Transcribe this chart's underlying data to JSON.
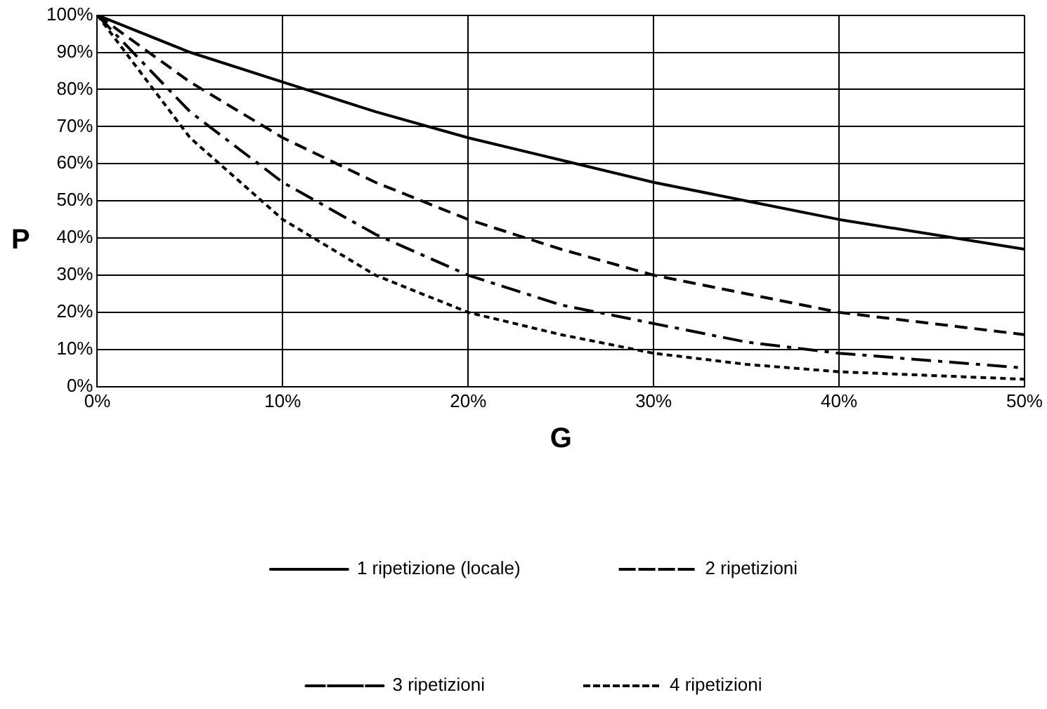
{
  "chart_data": {
    "type": "line",
    "xlabel": "G",
    "ylabel": "P",
    "x": [
      0,
      5,
      10,
      15,
      20,
      25,
      30,
      35,
      40,
      45,
      50
    ],
    "series": [
      {
        "name": "1 ripetizione (locale)",
        "color": "#000000",
        "line_style": "solid",
        "values": [
          100,
          90,
          82,
          74,
          67,
          61,
          55,
          50,
          45,
          41,
          37
        ]
      },
      {
        "name": "2 ripetizioni",
        "color": "#000000",
        "line_style": "dashed",
        "values": [
          100,
          82,
          67,
          55,
          45,
          37,
          30,
          25,
          20,
          17,
          14
        ]
      },
      {
        "name": "3 ripetizioni",
        "color": "#000000",
        "line_style": "dashdot",
        "values": [
          100,
          74,
          55,
          41,
          30,
          22,
          17,
          12,
          9,
          7,
          5
        ]
      },
      {
        "name": "4 ripetizioni",
        "color": "#000000",
        "line_style": "dotted",
        "values": [
          100,
          67,
          45,
          30,
          20,
          14,
          9,
          6,
          4,
          3,
          2
        ]
      }
    ],
    "xlim": [
      0,
      50
    ],
    "xticks": [
      {
        "value": 0,
        "label": "0%"
      },
      {
        "value": 10,
        "label": "10%"
      },
      {
        "value": 20,
        "label": "20%"
      },
      {
        "value": 30,
        "label": "30%"
      },
      {
        "value": 40,
        "label": "40%"
      },
      {
        "value": 50,
        "label": "50%"
      }
    ],
    "ylim": [
      0,
      100
    ],
    "yticks": [
      {
        "value": 0,
        "label": "0%"
      },
      {
        "value": 10,
        "label": "10%"
      },
      {
        "value": 20,
        "label": "20%"
      },
      {
        "value": 30,
        "label": "30%"
      },
      {
        "value": 40,
        "label": "40%"
      },
      {
        "value": 50,
        "label": "50%"
      },
      {
        "value": 60,
        "label": "60%"
      },
      {
        "value": 70,
        "label": "70%"
      },
      {
        "value": 80,
        "label": "80%"
      },
      {
        "value": 90,
        "label": "90%"
      },
      {
        "value": 100,
        "label": "100%"
      }
    ],
    "grid": true,
    "legend": "bottom",
    "marker": "none"
  }
}
